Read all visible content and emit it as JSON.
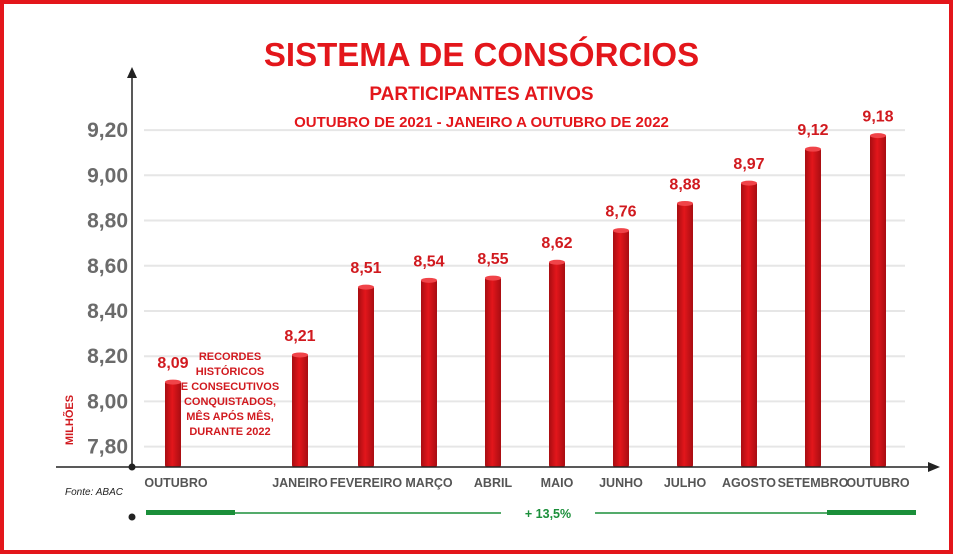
{
  "chart_data": {
    "type": "bar",
    "title": "SISTEMA DE CONSÓRCIOS",
    "subtitle": "PARTICIPANTES ATIVOS",
    "period": "OUTUBRO DE 2021 - JANEIRO A OUTUBRO DE 2022",
    "ylabel": "MILHÕES",
    "xlabel": "",
    "categories": [
      "OUTUBRO",
      "JANEIRO",
      "FEVEREIRO",
      "MARÇO",
      "ABRIL",
      "MAIO",
      "JUNHO",
      "JULHO",
      "AGOSTO",
      "SETEMBRO",
      "OUTUBRO"
    ],
    "values": [
      8.09,
      8.21,
      8.51,
      8.54,
      8.55,
      8.62,
      8.76,
      8.88,
      8.97,
      9.12,
      9.18
    ],
    "value_labels": [
      "8,09",
      "8,21",
      "8,51",
      "8,54",
      "8,55",
      "8,62",
      "8,76",
      "8,88",
      "8,97",
      "9,12",
      "9,18"
    ],
    "yticks": [
      7.8,
      8.0,
      8.2,
      8.4,
      8.6,
      8.8,
      9.0,
      9.2
    ],
    "ytick_labels": [
      "7,80",
      "8,00",
      "8,20",
      "8,40",
      "8,60",
      "8,80",
      "9,00",
      "9,20"
    ],
    "ylim": [
      7.71,
      9.28
    ],
    "grid": true,
    "legend": "none",
    "annotation": [
      "RECORDES",
      "HISTÓRICOS",
      "E CONSECUTIVOS",
      "CONQUISTADOS,",
      "MÊS APÓS MÊS,",
      "DURANTE 2022"
    ],
    "growth_label": "+ 13,5%",
    "source": "Fonte: ABAC",
    "colors": {
      "bar": "#e3161b",
      "bar_dark": "#a80d12",
      "accent": "#e3161b",
      "growth": "#1b8f3a",
      "axis": "#222222",
      "tick": "#6b6b6b"
    }
  }
}
